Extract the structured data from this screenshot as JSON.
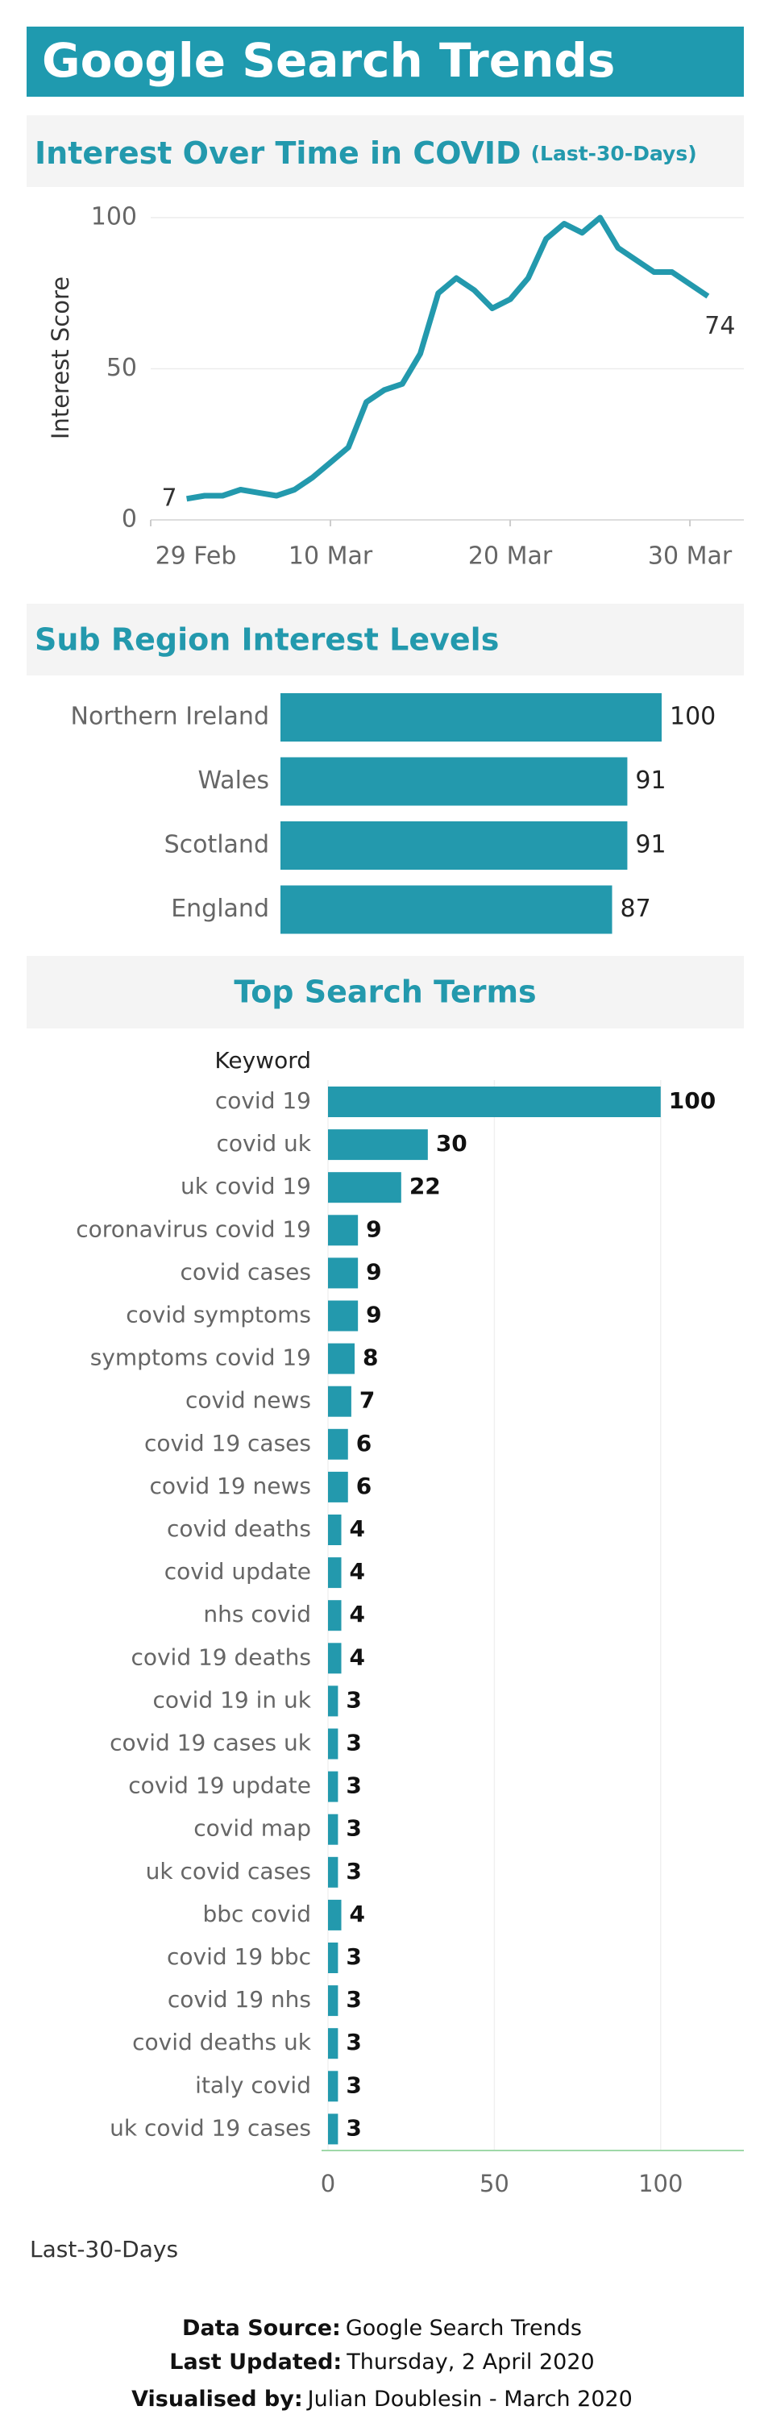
{
  "header": {
    "title": "Google Search Trends"
  },
  "chart_data": [
    {
      "type": "line",
      "title": "Interest Over Time in COVID",
      "subtitle": "(Last-30-Days)",
      "y_label": "Interest Score",
      "color": "#2399ad",
      "x": [
        "2 Mar",
        "3 Mar",
        "4 Mar",
        "5 Mar",
        "6 Mar",
        "7 Mar",
        "8 Mar",
        "9 Mar",
        "10 Mar",
        "11 Mar",
        "12 Mar",
        "13 Mar",
        "14 Mar",
        "15 Mar",
        "16 Mar",
        "17 Mar",
        "18 Mar",
        "19 Mar",
        "20 Mar",
        "21 Mar",
        "22 Mar",
        "23 Mar",
        "24 Mar",
        "25 Mar",
        "26 Mar",
        "27 Mar",
        "28 Mar",
        "29 Mar",
        "30 Mar",
        "31 Mar"
      ],
      "values": [
        7,
        8,
        8,
        10,
        9,
        8,
        10,
        14,
        19,
        24,
        39,
        43,
        45,
        55,
        75,
        80,
        76,
        70,
        73,
        80,
        93,
        98,
        95,
        100,
        90,
        86,
        82,
        82,
        78,
        74
      ],
      "xlim": [
        "29 Feb",
        "2 Apr"
      ],
      "xticks": [
        "29 Feb",
        "10 Mar",
        "20 Mar",
        "30 Mar"
      ],
      "ylim": [
        0,
        100
      ],
      "yticks": [
        0,
        50,
        100
      ],
      "grid": true
    },
    {
      "type": "hbar",
      "title": "Sub Region Interest Levels",
      "color": "#2399ad",
      "categories": [
        "Northern Ireland",
        "Wales",
        "Scotland",
        "England"
      ],
      "values": [
        100,
        91,
        91,
        87
      ]
    },
    {
      "type": "hbar_axis",
      "title": "Top Search Terms",
      "y_label": "Keyword",
      "color": "#2399ad",
      "categories": [
        "covid 19",
        "covid uk",
        "uk covid 19",
        "coronavirus covid 19",
        "covid cases",
        "covid symptoms",
        "symptoms covid 19",
        "covid news",
        "covid 19 cases",
        "covid 19 news",
        "covid deaths",
        "covid update",
        "nhs covid",
        "covid 19 deaths",
        "covid 19 in uk",
        "covid 19 cases uk",
        "covid 19 update",
        "covid map",
        "uk covid cases",
        "bbc covid",
        "covid 19 bbc",
        "covid 19 nhs",
        "covid deaths uk",
        "italy covid",
        "uk covid 19 cases"
      ],
      "values": [
        100,
        30,
        22,
        9,
        9,
        9,
        8,
        7,
        6,
        6,
        4,
        4,
        4,
        4,
        3,
        3,
        3,
        3,
        3,
        4,
        3,
        3,
        3,
        3,
        3
      ],
      "xlim": [
        0,
        125
      ],
      "xticks": [
        0,
        50,
        100
      ],
      "grid": true
    }
  ],
  "note": "Last-30-Days",
  "footer": {
    "source_label": "Data Source:",
    "source": "Google Search Trends",
    "updated_label": "Last Updated:",
    "updated": "Thursday, 2 April 2020",
    "credit_label": "Visualised by:",
    "credit": "Julian Doublesin - March 2020"
  }
}
